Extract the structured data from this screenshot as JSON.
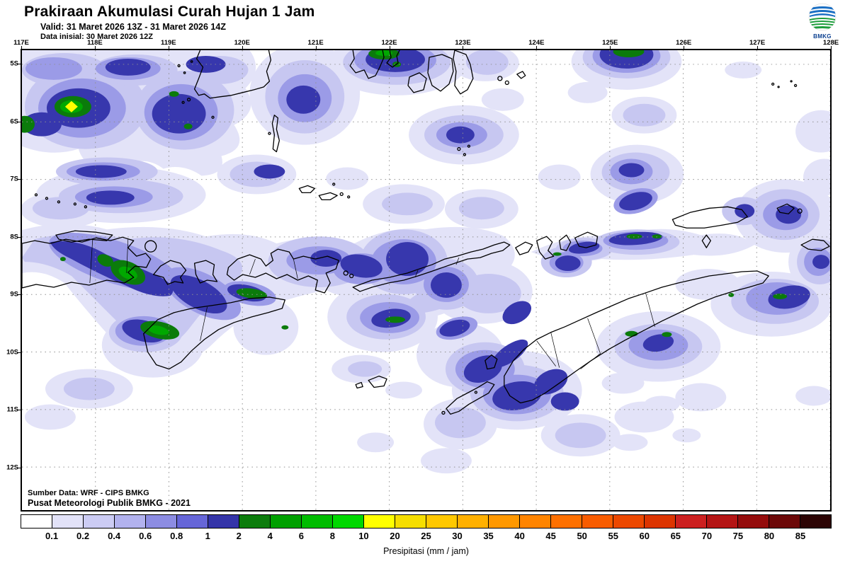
{
  "header": {
    "title": "Prakiraan Akumulasi Curah Hujan 1 Jam",
    "valid_line": "Valid: 31 Maret 2026 13Z -  31 Maret 2026 14Z",
    "init_line": "Data inisial: 30 Maret 2026 12Z",
    "logo_text": "BMKG"
  },
  "map": {
    "lon_labels": [
      "117E",
      "118E",
      "119E",
      "120E",
      "121E",
      "122E",
      "123E",
      "124E",
      "125E",
      "126E",
      "127E",
      "128E"
    ],
    "lat_labels": [
      "5S",
      "6S",
      "7S",
      "8S",
      "9S",
      "10S",
      "11S",
      "12S"
    ],
    "source_line1": "Sumber Data: WRF - CIPS BMKG",
    "source_line2": "Pusat Meteorologi Publik BMKG - 2021"
  },
  "colorbar": {
    "caption": "Presipitasi (mm / jam)",
    "labels": [
      "0.1",
      "0.2",
      "0.4",
      "0.6",
      "0.8",
      "1",
      "2",
      "4",
      "6",
      "8",
      "10",
      "20",
      "25",
      "30",
      "35",
      "40",
      "45",
      "50",
      "55",
      "60",
      "65",
      "70",
      "75",
      "80",
      "85"
    ],
    "colors": [
      "#ffffff",
      "#e2e2f8",
      "#ccccf4",
      "#b2b2ee",
      "#8c8ce2",
      "#6666d8",
      "#3434a8",
      "#0c7c0c",
      "#00a000",
      "#00bc00",
      "#00d800",
      "#ffff00",
      "#f6de00",
      "#ffc800",
      "#ffb000",
      "#ff9800",
      "#ff8400",
      "#fe7000",
      "#f85c00",
      "#ec4800",
      "#dc3400",
      "#cc2020",
      "#b41414",
      "#940c0c",
      "#6c0808",
      "#2c0404"
    ]
  }
}
